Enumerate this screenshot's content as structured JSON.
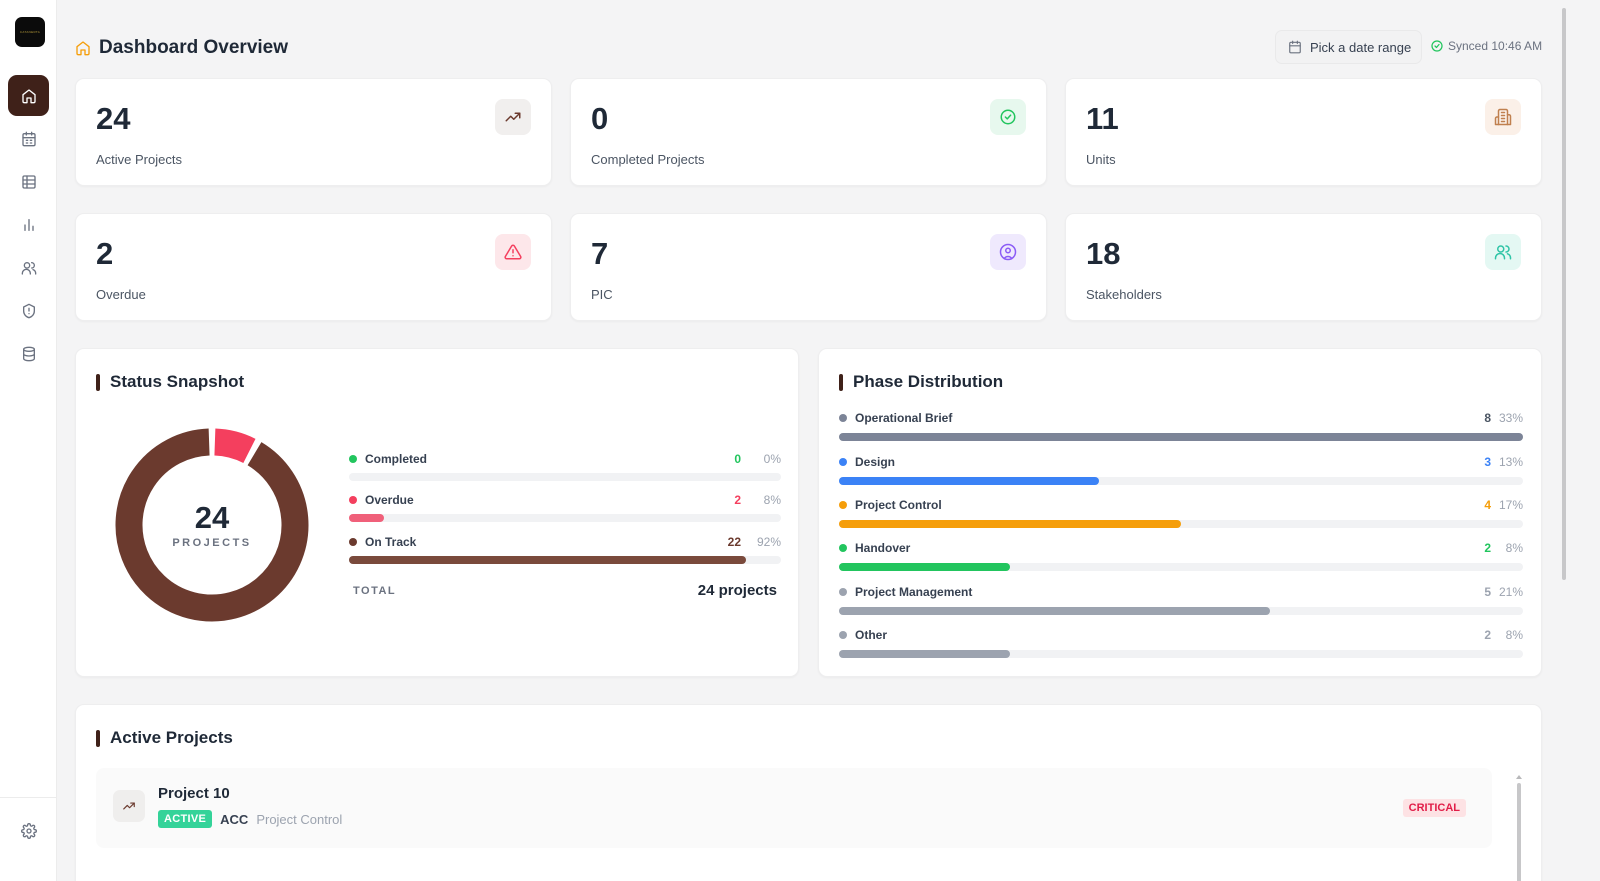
{
  "app": {
    "logo_text": "CATANERTA"
  },
  "sidebar": {
    "items": [
      {
        "name": "home",
        "icon": "home-icon",
        "active": true
      },
      {
        "name": "calendar",
        "icon": "calendar-icon",
        "active": false
      },
      {
        "name": "table",
        "icon": "table-icon",
        "active": false
      },
      {
        "name": "analytics",
        "icon": "bar-chart-icon",
        "active": false
      },
      {
        "name": "users",
        "icon": "users-icon",
        "active": false
      },
      {
        "name": "security",
        "icon": "shield-icon",
        "active": false
      },
      {
        "name": "database",
        "icon": "database-icon",
        "active": false
      }
    ],
    "settings_icon": "gear-icon"
  },
  "header": {
    "title": "Dashboard Overview",
    "date_button": "Pick a date range",
    "synced": "Synced 10:46 AM"
  },
  "stats": [
    {
      "value": "24",
      "label": "Active Projects",
      "icon": "trending-up-icon",
      "color": "#6b3a2e",
      "bg": "#f1efee"
    },
    {
      "value": "0",
      "label": "Completed Projects",
      "icon": "check-circle-icon",
      "color": "#22c55e",
      "bg": "#e7f8ee"
    },
    {
      "value": "11",
      "label": "Units",
      "icon": "building-icon",
      "color": "#c0804f",
      "bg": "#fbf0e8"
    },
    {
      "value": "2",
      "label": "Overdue",
      "icon": "alert-triangle-icon",
      "color": "#f43f5e",
      "bg": "#fde7ea"
    },
    {
      "value": "7",
      "label": "PIC",
      "icon": "user-circle-icon",
      "color": "#8b5cf6",
      "bg": "#efe9fd"
    },
    {
      "value": "18",
      "label": "Stakeholders",
      "icon": "users-icon",
      "color": "#2ec4a6",
      "bg": "#e4f8f3"
    }
  ],
  "status_snapshot": {
    "title": "Status Snapshot",
    "center_value": "24",
    "center_label": "PROJECTS",
    "items": [
      {
        "name": "Completed",
        "count": "0",
        "pct": "0%",
        "fraction": 0,
        "color": "#22c55e"
      },
      {
        "name": "Overdue",
        "count": "2",
        "pct": "8%",
        "fraction": 0.08,
        "color": "#f43f5e"
      },
      {
        "name": "On Track",
        "count": "22",
        "pct": "92%",
        "fraction": 0.92,
        "color": "#6b3a2e"
      }
    ],
    "total_label": "TOTAL",
    "total_value": "24 projects"
  },
  "phase_distribution": {
    "title": "Phase Distribution",
    "items": [
      {
        "name": "Operational Brief",
        "count": "8",
        "pct": "33%",
        "fraction": 1.0,
        "color": "#7c8497",
        "count_color": "#4b5563"
      },
      {
        "name": "Design",
        "count": "3",
        "pct": "13%",
        "fraction": 0.38,
        "color": "#3b82f6",
        "count_color": "#3b82f6"
      },
      {
        "name": "Project Control",
        "count": "4",
        "pct": "17%",
        "fraction": 0.5,
        "color": "#f59e0b",
        "count_color": "#f59e0b"
      },
      {
        "name": "Handover",
        "count": "2",
        "pct": "8%",
        "fraction": 0.25,
        "color": "#22c55e",
        "count_color": "#22c55e"
      },
      {
        "name": "Project Management",
        "count": "5",
        "pct": "21%",
        "fraction": 0.63,
        "color": "#9ca3af",
        "count_color": "#9ca3af"
      },
      {
        "name": "Other",
        "count": "2",
        "pct": "8%",
        "fraction": 0.25,
        "color": "#9ca3af",
        "count_color": "#9ca3af"
      }
    ]
  },
  "active_projects": {
    "title": "Active Projects",
    "rows": [
      {
        "name": "Project 10",
        "status": "ACTIVE",
        "code": "ACC",
        "phase": "Project Control",
        "priority": "CRITICAL",
        "icon": "trending-up-icon"
      }
    ]
  }
}
